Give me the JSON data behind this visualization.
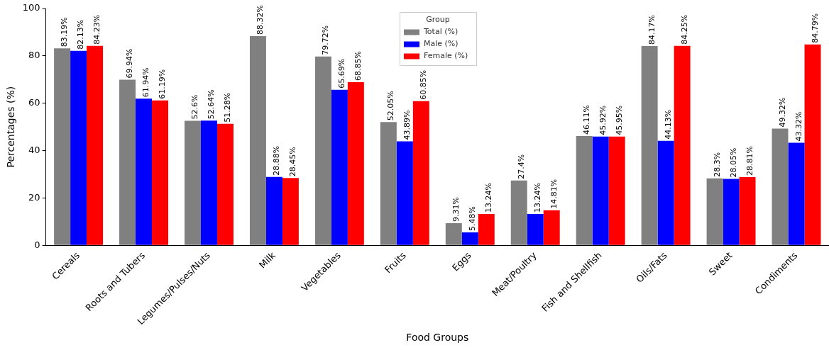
{
  "chart_data": {
    "type": "bar",
    "xlabel": "Food Groups",
    "ylabel": "Percentages (%)",
    "legend_title": "Group",
    "legend": "top",
    "grid": false,
    "categories": [
      "Cereals",
      "Roots and Tubers",
      "Legumes/Pulses/Nuts",
      "Milk",
      "Vegetables",
      "Fruits",
      "Eggs",
      "Meat/Poultry",
      "Fish and Shellfish",
      "Oils/Fats",
      "Sweet",
      "Condiments"
    ],
    "ylim": [
      0,
      100
    ],
    "yticks": [
      0,
      20,
      40,
      60,
      80,
      100
    ],
    "series": [
      {
        "name": "Total (%)",
        "color": "#808080",
        "values": [
          83.19,
          69.94,
          52.6,
          88.32,
          79.72,
          52.05,
          9.31,
          27.4,
          46.11,
          84.17,
          28.3,
          49.32
        ],
        "value_labels": [
          "83.19%",
          "69.94%",
          "52.6%",
          "88.32%",
          "79.72%",
          "52.05%",
          "9.31%",
          "27.4%",
          "46.11%",
          "84.17%",
          "28.3%",
          "49.32%"
        ]
      },
      {
        "name": "Male (%)",
        "color": "#0000ff",
        "values": [
          82.13,
          61.94,
          52.64,
          28.88,
          65.69,
          43.89,
          5.48,
          13.24,
          45.92,
          44.13,
          28.05,
          43.32
        ],
        "value_labels": [
          "82.13%",
          "61.94%",
          "52.64%",
          "28.88%",
          "65.69%",
          "43.89%",
          "5.48%",
          "13.24%",
          "45.92%",
          "44.13%",
          "28.05%",
          "43.32%"
        ]
      },
      {
        "name": "Female (%)",
        "color": "#ff0000",
        "values": [
          84.23,
          61.19,
          51.28,
          28.45,
          68.85,
          60.85,
          13.24,
          14.81,
          45.95,
          84.25,
          28.81,
          84.79
        ],
        "value_labels": [
          "84.23%",
          "61.19%",
          "51.28%",
          "28.45%",
          "68.85%",
          "60.85%",
          "13.24%",
          "14.81%",
          "45.95%",
          "84.25%",
          "28.81%",
          "84.79%"
        ]
      }
    ]
  }
}
